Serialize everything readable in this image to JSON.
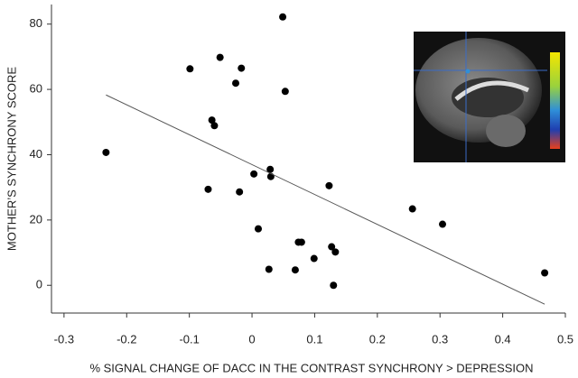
{
  "chart_data": {
    "type": "scatter",
    "xlabel": "% SIGNAL CHANGE OF DACC IN THE CONTRAST SYNCHRONY > DEPRESSION",
    "ylabel": "MOTHER’S SYNCHRONY SCORE",
    "xlim": [
      -0.32,
      0.5
    ],
    "ylim": [
      -8.5,
      86
    ],
    "xticks": [
      -0.3,
      -0.2,
      -0.1,
      0,
      0.1,
      0.2,
      0.3,
      0.4,
      0.5
    ],
    "yticks": [
      0,
      20,
      40,
      60,
      80
    ],
    "series": [
      {
        "color": "#000000",
        "x": [
          -0.233,
          -0.099,
          -0.051,
          -0.017,
          -0.026,
          0.049,
          0.053,
          -0.064,
          -0.06,
          -0.07,
          -0.02,
          0.003,
          0.029,
          0.03,
          0.123,
          0.01,
          0.074,
          0.079,
          0.127,
          0.133,
          0.099,
          0.027,
          0.069,
          0.13,
          0.256,
          0.304,
          0.467
        ],
        "values": [
          40.7,
          66.3,
          69.8,
          66.5,
          61.9,
          82.2,
          59.4,
          50.6,
          48.9,
          29.4,
          28.6,
          34.1,
          35.5,
          33.3,
          30.5,
          17.3,
          13.2,
          13.2,
          11.8,
          10.2,
          8.2,
          4.9,
          4.7,
          0,
          23.4,
          18.7,
          3.8
        ]
      },
      {
        "type": "line",
        "color": "#555555",
        "x": [
          -0.233,
          0.467
        ],
        "values": [
          58.3,
          -5.8
        ]
      }
    ]
  }
}
